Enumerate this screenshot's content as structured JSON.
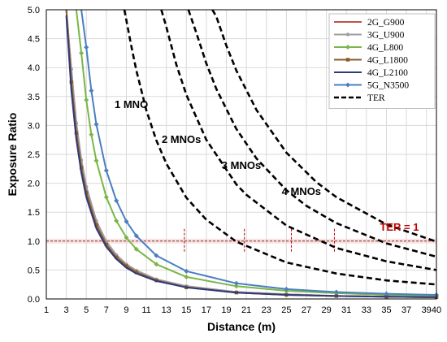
{
  "chart_data": {
    "type": "line",
    "xlabel": "Distance (m)",
    "ylabel": "Exposure Ratio",
    "xlim": [
      1,
      40
    ],
    "ylim": [
      0,
      5
    ],
    "x_ticks": [
      1,
      3,
      5,
      7,
      9,
      11,
      13,
      15,
      17,
      19,
      21,
      23,
      25,
      27,
      29,
      31,
      33,
      35,
      37,
      39,
      40
    ],
    "y_ticks": [
      0.0,
      0.5,
      1.0,
      1.5,
      2.0,
      2.5,
      3.0,
      3.5,
      4.0,
      4.5,
      5.0
    ],
    "x_tick_labels": [
      "1",
      "3",
      "5",
      "7",
      "9",
      "11",
      "13",
      "15",
      "17",
      "19",
      "21",
      "23",
      "25",
      "27",
      "29",
      "31",
      "33",
      "35",
      "37",
      "39",
      "40"
    ],
    "y_tick_labels": [
      "0.0",
      "0.5",
      "1.0",
      "1.5",
      "2.0",
      "2.5",
      "3.0",
      "3.5",
      "4.0",
      "4.5",
      "5.0"
    ],
    "grid": true,
    "legend_position": "top-right",
    "series": [
      {
        "name": "2G_G900",
        "color": "#c0504d",
        "marker": "none",
        "x": [
          3,
          3.5,
          4,
          4.5,
          5,
          6,
          7,
          8,
          9,
          10,
          12,
          15,
          20,
          25,
          30,
          35,
          40
        ],
        "y": [
          5.4,
          3.97,
          3.04,
          2.4,
          1.94,
          1.35,
          0.99,
          0.76,
          0.6,
          0.49,
          0.34,
          0.22,
          0.12,
          0.08,
          0.05,
          0.04,
          0.03
        ]
      },
      {
        "name": "3G_U900",
        "color": "#9e9e9e",
        "marker": "circle",
        "x": [
          3,
          3.5,
          4,
          4.5,
          5,
          6,
          7,
          8,
          9,
          10,
          12,
          15,
          20,
          25,
          30,
          35,
          40
        ],
        "y": [
          5.4,
          3.97,
          3.04,
          2.4,
          1.94,
          1.35,
          0.99,
          0.76,
          0.6,
          0.49,
          0.34,
          0.22,
          0.12,
          0.08,
          0.05,
          0.04,
          0.03
        ]
      },
      {
        "name": "4G_L800",
        "color": "#7ab648",
        "marker": "diamond",
        "x": [
          4,
          4.5,
          5,
          5.5,
          6,
          7,
          8,
          9,
          10,
          12,
          15,
          20,
          25,
          30,
          35,
          40
        ],
        "y": [
          5.38,
          4.25,
          3.44,
          2.84,
          2.39,
          1.76,
          1.35,
          1.06,
          0.86,
          0.6,
          0.38,
          0.22,
          0.14,
          0.1,
          0.07,
          0.05
        ]
      },
      {
        "name": "4G_L1800",
        "color": "#8b5a2b",
        "marker": "square",
        "x": [
          3,
          3.5,
          4,
          4.5,
          5,
          6,
          7,
          8,
          9,
          10,
          12,
          15,
          20,
          25,
          30,
          35,
          40
        ],
        "y": [
          5.1,
          3.75,
          2.87,
          2.27,
          1.84,
          1.28,
          0.94,
          0.72,
          0.57,
          0.46,
          0.32,
          0.2,
          0.11,
          0.07,
          0.05,
          0.04,
          0.03
        ]
      },
      {
        "name": "4G_L2100",
        "color": "#2e3a7a",
        "marker": "none",
        "x": [
          3,
          3.5,
          4,
          4.5,
          5,
          6,
          7,
          8,
          9,
          10,
          12,
          15,
          20,
          25,
          30,
          35,
          40
        ],
        "y": [
          4.9,
          3.6,
          2.76,
          2.18,
          1.76,
          1.22,
          0.9,
          0.69,
          0.54,
          0.44,
          0.31,
          0.2,
          0.11,
          0.07,
          0.05,
          0.04,
          0.03
        ]
      },
      {
        "name": "5G_N3500",
        "color": "#4a7fc1",
        "marker": "diamond",
        "x": [
          4.5,
          5,
          5.5,
          6,
          7,
          8,
          9,
          10,
          12,
          15,
          20,
          25,
          30,
          35,
          40
        ],
        "y": [
          5.4,
          4.35,
          3.6,
          3.02,
          2.22,
          1.7,
          1.34,
          1.09,
          0.75,
          0.48,
          0.27,
          0.17,
          0.12,
          0.09,
          0.07
        ]
      },
      {
        "name": "TER",
        "color": "#000000",
        "dashed": true,
        "x": [
          8.8,
          9.5,
          10,
          11,
          12,
          13,
          15,
          17,
          20,
          25,
          30,
          35,
          40
        ],
        "y": [
          5.1,
          4.37,
          3.95,
          3.26,
          2.74,
          2.34,
          1.75,
          1.37,
          0.99,
          0.63,
          0.44,
          0.32,
          0.25
        ]
      },
      {
        "name": "",
        "color": "#000000",
        "dashed": true,
        "x": [
          12.5,
          13,
          14,
          15,
          17,
          20,
          21,
          25,
          30,
          35,
          40
        ],
        "y": [
          5.1,
          4.7,
          4.05,
          3.53,
          2.75,
          1.98,
          1.8,
          1.27,
          0.88,
          0.65,
          0.5
        ]
      },
      {
        "name": "",
        "color": "#000000",
        "dashed": true,
        "x": [
          15.2,
          16,
          17,
          18,
          20,
          22,
          25,
          27,
          30,
          35,
          40
        ],
        "y": [
          5.1,
          4.6,
          4.07,
          3.63,
          2.94,
          2.43,
          1.88,
          1.61,
          1.31,
          0.96,
          0.73
        ]
      },
      {
        "name": "",
        "color": "#000000",
        "dashed": true,
        "x": [
          17.6,
          18,
          19,
          20,
          22,
          25,
          28,
          30,
          35,
          40
        ],
        "y": [
          5.1,
          4.88,
          4.38,
          3.95,
          3.27,
          2.53,
          2.02,
          1.76,
          1.29,
          0.99
        ]
      }
    ],
    "annotations": [
      {
        "text": "1 MNO",
        "x": 9.5,
        "y": 3.3
      },
      {
        "text": "2 MNOs",
        "x": 14.5,
        "y": 2.7
      },
      {
        "text": "3 MNOs",
        "x": 20.5,
        "y": 2.25
      },
      {
        "text": "4 MNOs",
        "x": 26.5,
        "y": 1.8
      },
      {
        "text": "TER = 1",
        "x": 36.3,
        "y": 1.18,
        "color": "#c00000"
      }
    ],
    "reference_line": {
      "y": 1.0,
      "color": "#8b2c1e"
    },
    "intersection_markers": [
      14.8,
      20.8,
      25.5,
      29.8
    ]
  }
}
